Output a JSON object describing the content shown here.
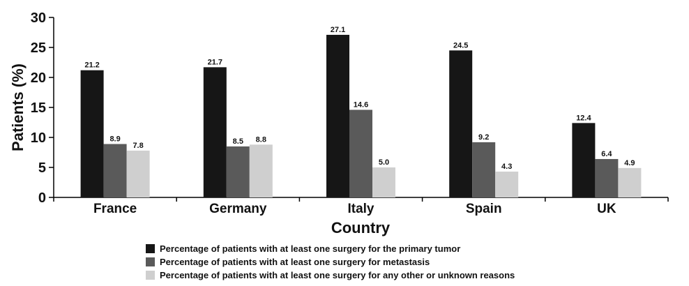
{
  "chart_data": {
    "type": "bar",
    "title": "",
    "xlabel": "Country",
    "ylabel": "Patients (%)",
    "ylim": [
      0,
      30
    ],
    "yticks": [
      0,
      5,
      10,
      15,
      20,
      25,
      30
    ],
    "grid": false,
    "legend_position": "bottom",
    "categories": [
      "France",
      "Germany",
      "Italy",
      "Spain",
      "UK"
    ],
    "series": [
      {
        "name": "Percentage of patients with at least one surgery for the primary tumor",
        "color": "#161616",
        "values": [
          21.2,
          21.7,
          27.1,
          24.5,
          12.4
        ]
      },
      {
        "name": "Percentage of patients with at least one surgery for metastasis",
        "color": "#5a5a5a",
        "values": [
          8.9,
          8.5,
          14.6,
          9.2,
          6.4
        ]
      },
      {
        "name": "Percentage of patients with at least one surgery for any other or unknown reasons",
        "color": "#cfcfcf",
        "values": [
          7.8,
          8.8,
          5.0,
          4.3,
          4.9
        ]
      }
    ]
  }
}
